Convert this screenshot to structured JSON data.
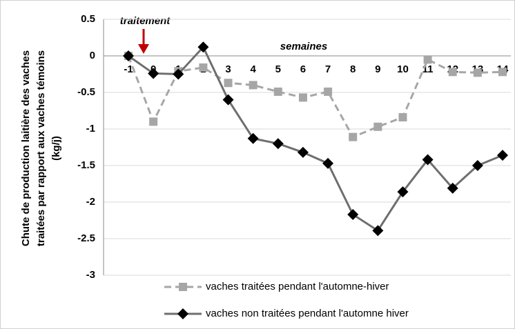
{
  "chart_data": {
    "type": "line",
    "ylabel": [
      "Chute de production laitière des vaches",
      "traitées par rapport aux vaches témoins",
      "(kg/j)"
    ],
    "xlabel": "semaines",
    "annotation": "traitement",
    "annotation_color": "#c00000",
    "categories": [
      "-1",
      "0",
      "1",
      "2",
      "3",
      "4",
      "5",
      "6",
      "7",
      "8",
      "9",
      "10",
      "11",
      "12",
      "13",
      "14"
    ],
    "series": [
      {
        "name": "vaches traitées pendant l'automne-hiver",
        "color": "#a6a6a6",
        "dash": true,
        "marker": "square",
        "values": [
          0,
          -0.9,
          -0.21,
          -0.16,
          -0.37,
          -0.4,
          -0.49,
          -0.57,
          -0.49,
          -1.11,
          -0.97,
          -0.84,
          -0.05,
          -0.22,
          -0.23,
          -0.22
        ]
      },
      {
        "name": "vaches non traitées pendant l'automne hiver",
        "color": "#6e6e6e",
        "dash": false,
        "marker": "diamond",
        "values": [
          0,
          -0.24,
          -0.25,
          0.12,
          -0.6,
          -1.13,
          -1.2,
          -1.32,
          -1.47,
          -2.17,
          -2.39,
          -1.86,
          -1.42,
          -1.81,
          -1.5,
          -1.36
        ]
      }
    ],
    "ylim": [
      -3,
      0.5
    ],
    "yticks": [
      0.5,
      0,
      -0.5,
      -1,
      -1.5,
      -2,
      -2.5,
      -3
    ],
    "grid": true
  }
}
